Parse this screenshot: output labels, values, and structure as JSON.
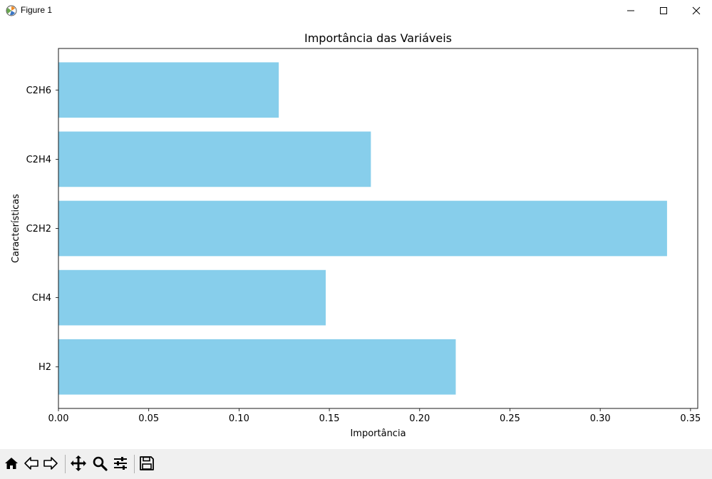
{
  "window": {
    "title": "Figure 1",
    "app_icon": "matplotlib-icon",
    "controls": [
      "minimize-icon",
      "maximize-icon",
      "close-icon"
    ]
  },
  "toolbar": {
    "buttons": [
      {
        "name": "home-button",
        "icon": "home-icon"
      },
      {
        "name": "back-button",
        "icon": "arrow-left-icon"
      },
      {
        "name": "forward-button",
        "icon": "arrow-right-icon"
      },
      {
        "name": "pan-button",
        "icon": "move-icon"
      },
      {
        "name": "zoom-button",
        "icon": "zoom-icon"
      },
      {
        "name": "configure-subplots-button",
        "icon": "sliders-icon"
      },
      {
        "name": "save-button",
        "icon": "floppy-disk-icon"
      }
    ]
  },
  "chart_data": {
    "type": "bar",
    "orientation": "horizontal",
    "title": "Importância das Variáveis",
    "xlabel": "Importância",
    "ylabel": "Características",
    "categories": [
      "H2",
      "CH4",
      "C2H2",
      "C2H4",
      "C2H6"
    ],
    "values": [
      0.22,
      0.148,
      0.337,
      0.173,
      0.122
    ],
    "xlim": [
      0,
      0.354
    ],
    "xticks": [
      "0.00",
      "0.05",
      "0.10",
      "0.15",
      "0.20",
      "0.25",
      "0.30",
      "0.35"
    ],
    "xtick_values": [
      0,
      0.05,
      0.1,
      0.15,
      0.2,
      0.25,
      0.3,
      0.35
    ],
    "bar_color": "#87ceeb",
    "grid": false
  }
}
